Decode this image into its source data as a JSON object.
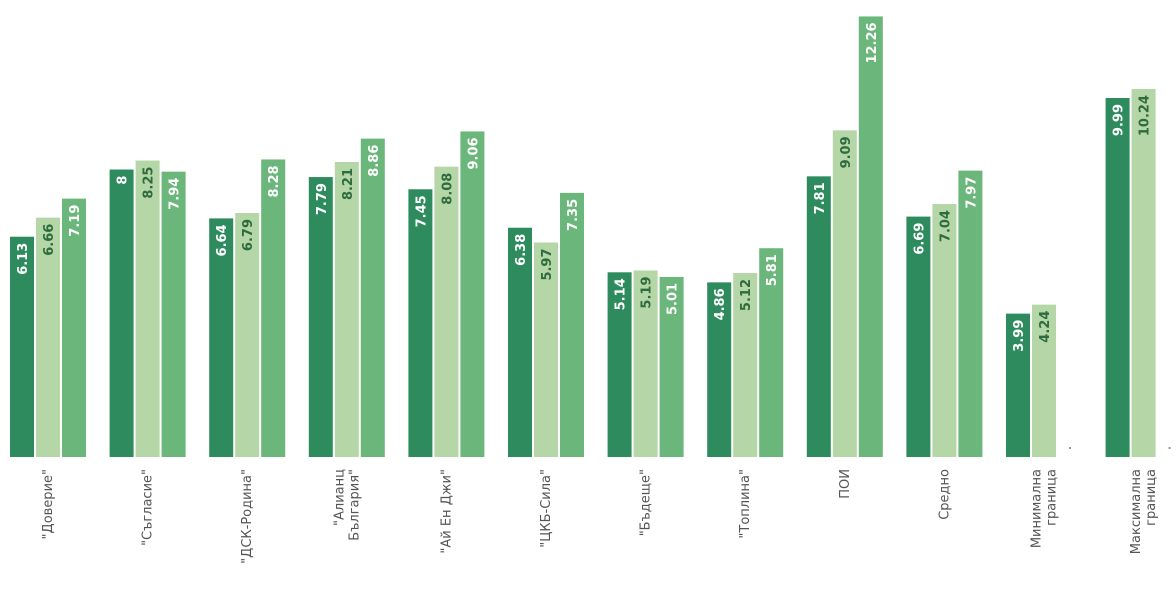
{
  "chart_data": {
    "type": "bar",
    "categories": [
      [
        "\"Доверие\""
      ],
      [
        "\"Съгласие\""
      ],
      [
        "\"ДСК-Родина\""
      ],
      [
        "\"Алианц",
        "България\""
      ],
      [
        "\"Ай Ен Джи\""
      ],
      [
        "\"ЦКБ-Сила\""
      ],
      [
        "\"Бъдеще\""
      ],
      [
        "\"Топлина\""
      ],
      [
        "ПОИ"
      ],
      [
        "Средно"
      ],
      [
        "Минимална",
        "граница"
      ],
      [
        "Максимална",
        "граница"
      ]
    ],
    "series": [
      {
        "values": [
          6.13,
          8,
          6.64,
          7.79,
          7.45,
          6.38,
          5.14,
          4.86,
          7.81,
          6.69,
          3.99,
          9.99
        ]
      },
      {
        "values": [
          6.66,
          8.25,
          6.79,
          8.21,
          8.08,
          5.97,
          5.19,
          5.12,
          9.09,
          7.04,
          4.24,
          10.24
        ]
      },
      {
        "values": [
          7.19,
          7.94,
          8.28,
          8.86,
          9.06,
          7.35,
          5.01,
          5.81,
          12.26,
          7.97,
          null,
          null
        ]
      }
    ],
    "value_labels": [
      [
        "6.13",
        "8",
        "6.64",
        "7.79",
        "7.45",
        "6.38",
        "5.14",
        "4.86",
        "7.81",
        "6.69",
        "3.99",
        "9.99"
      ],
      [
        "6.66",
        "8.25",
        "6.79",
        "8.21",
        "8.08",
        "5.97",
        "5.19",
        "5.12",
        "9.09",
        "7.04",
        "4.24",
        "10.24"
      ],
      [
        "7.19",
        "7.94",
        "8.28",
        "8.86",
        "9.06",
        "7.35",
        "5.01",
        "5.81",
        "12.26",
        "7.97",
        "",
        ""
      ]
    ],
    "ylim": [
      0,
      12.3
    ],
    "grid": false,
    "colors": [
      "#2e8b5e",
      "#b5d6a6",
      "#6bb67a"
    ],
    "label_colors": [
      "#ffffff",
      "#2e6b3e",
      "#ffffff"
    ]
  }
}
